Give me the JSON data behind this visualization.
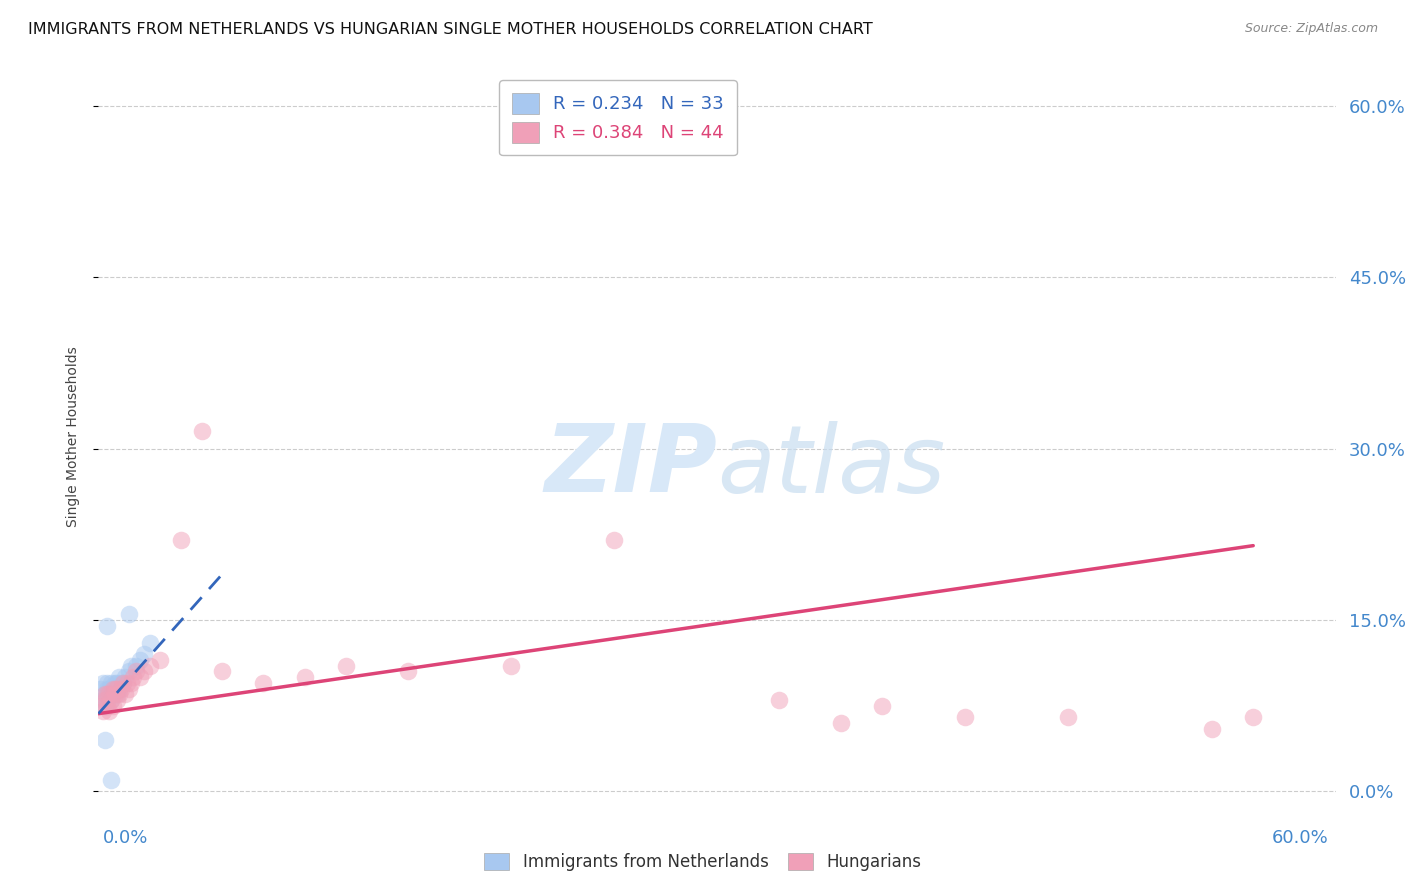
{
  "title": "IMMIGRANTS FROM NETHERLANDS VS HUNGARIAN SINGLE MOTHER HOUSEHOLDS CORRELATION CHART",
  "source": "Source: ZipAtlas.com",
  "ylabel": "Single Mother Households",
  "ytick_values": [
    0.0,
    0.15,
    0.3,
    0.45,
    0.6
  ],
  "xlim": [
    0.0,
    0.6
  ],
  "ylim": [
    -0.01,
    0.63
  ],
  "legend_entries": [
    {
      "label": "R = 0.234   N = 33"
    },
    {
      "label": "R = 0.384   N = 44"
    }
  ],
  "blue_scatter_x": [
    0.001,
    0.002,
    0.002,
    0.003,
    0.003,
    0.004,
    0.004,
    0.004,
    0.005,
    0.005,
    0.006,
    0.006,
    0.007,
    0.007,
    0.008,
    0.008,
    0.009,
    0.009,
    0.01,
    0.01,
    0.011,
    0.012,
    0.013,
    0.015,
    0.016,
    0.018,
    0.02,
    0.022,
    0.025,
    0.015,
    0.004,
    0.003,
    0.006
  ],
  "blue_scatter_y": [
    0.09,
    0.08,
    0.095,
    0.075,
    0.085,
    0.08,
    0.09,
    0.095,
    0.085,
    0.09,
    0.08,
    0.095,
    0.085,
    0.09,
    0.09,
    0.095,
    0.085,
    0.095,
    0.09,
    0.1,
    0.095,
    0.095,
    0.1,
    0.105,
    0.11,
    0.11,
    0.115,
    0.12,
    0.13,
    0.155,
    0.145,
    0.045,
    0.01
  ],
  "pink_scatter_x": [
    0.001,
    0.002,
    0.003,
    0.003,
    0.004,
    0.004,
    0.005,
    0.005,
    0.006,
    0.007,
    0.007,
    0.008,
    0.008,
    0.009,
    0.009,
    0.01,
    0.011,
    0.012,
    0.013,
    0.014,
    0.015,
    0.016,
    0.017,
    0.018,
    0.02,
    0.022,
    0.025,
    0.03,
    0.04,
    0.05,
    0.06,
    0.08,
    0.1,
    0.12,
    0.15,
    0.2,
    0.25,
    0.33,
    0.36,
    0.38,
    0.42,
    0.47,
    0.54,
    0.56
  ],
  "pink_scatter_y": [
    0.075,
    0.07,
    0.08,
    0.085,
    0.075,
    0.085,
    0.07,
    0.085,
    0.08,
    0.075,
    0.09,
    0.085,
    0.09,
    0.08,
    0.09,
    0.085,
    0.09,
    0.095,
    0.085,
    0.095,
    0.09,
    0.095,
    0.1,
    0.105,
    0.1,
    0.105,
    0.11,
    0.115,
    0.22,
    0.315,
    0.105,
    0.095,
    0.1,
    0.11,
    0.105,
    0.11,
    0.22,
    0.08,
    0.06,
    0.075,
    0.065,
    0.065,
    0.055,
    0.065
  ],
  "blue_line_x": [
    0.0,
    0.06
  ],
  "blue_line_y": [
    0.068,
    0.19
  ],
  "pink_line_x": [
    0.0,
    0.56
  ],
  "pink_line_y": [
    0.068,
    0.215
  ],
  "scatter_size": 160,
  "scatter_alpha": 0.5,
  "blue_color": "#a8c8f0",
  "pink_color": "#f0a0b8",
  "blue_line_color": "#3366bb",
  "pink_line_color": "#dd4477",
  "grid_color": "#cccccc",
  "bg_color": "#ffffff",
  "watermark_color": "#d8e8f8",
  "right_ytick_color": "#4488cc",
  "title_fontsize": 11.5,
  "source_fontsize": 9
}
